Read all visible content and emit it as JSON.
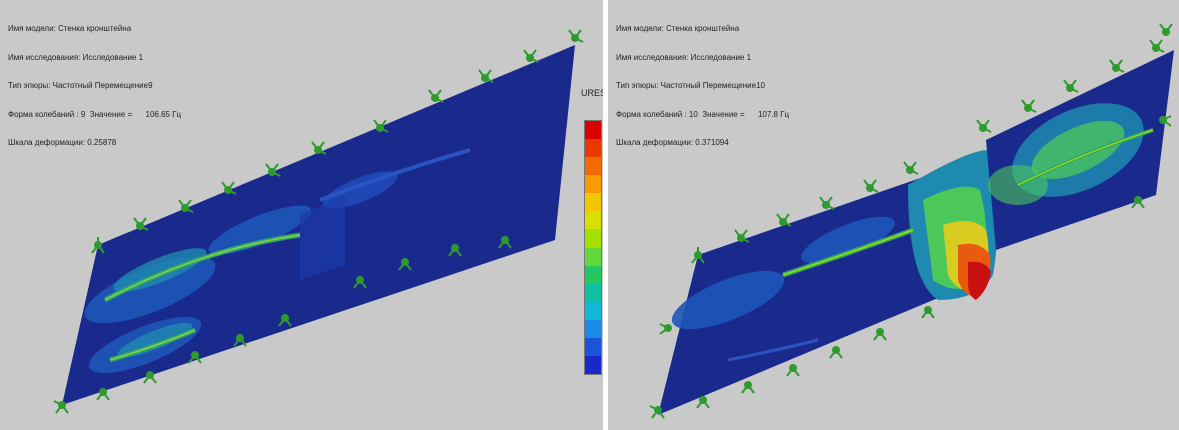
{
  "left_view": {
    "info_lines": [
      "Имя модели: Стенка кронштейна",
      "Имя исследования: Исследование 1",
      "Тип эпюры: Частотный Перемещение9",
      "Форма колебаний : 9  Значение =      106.65 Гц",
      "Шкала деформации: 0.25878"
    ],
    "legend_title": "URES"
  },
  "right_view": {
    "info_lines": [
      "Имя модели: Стенка кронштейна",
      "Имя исследования: Исследование 1",
      "Тип эпюры: Частотный Перемещение10",
      "Форма колебаний : 10  Значение =      107.8 Гц",
      "Шкала деформации: 0.371094"
    ]
  },
  "colors": {
    "background": "#c9c9c9",
    "plate_dark": "#1a2a8c",
    "plate_mid": "#1f49b8",
    "fixture_green": "#2f9a2f",
    "legend_scale": [
      "#d80000",
      "#e83a00",
      "#f26a00",
      "#f79a00",
      "#f2c600",
      "#d8e000",
      "#a6e000",
      "#5fd83a",
      "#23c85f",
      "#10c0a0",
      "#10b8d8",
      "#1a8ae8",
      "#1a55d8",
      "#1a28c8"
    ]
  }
}
